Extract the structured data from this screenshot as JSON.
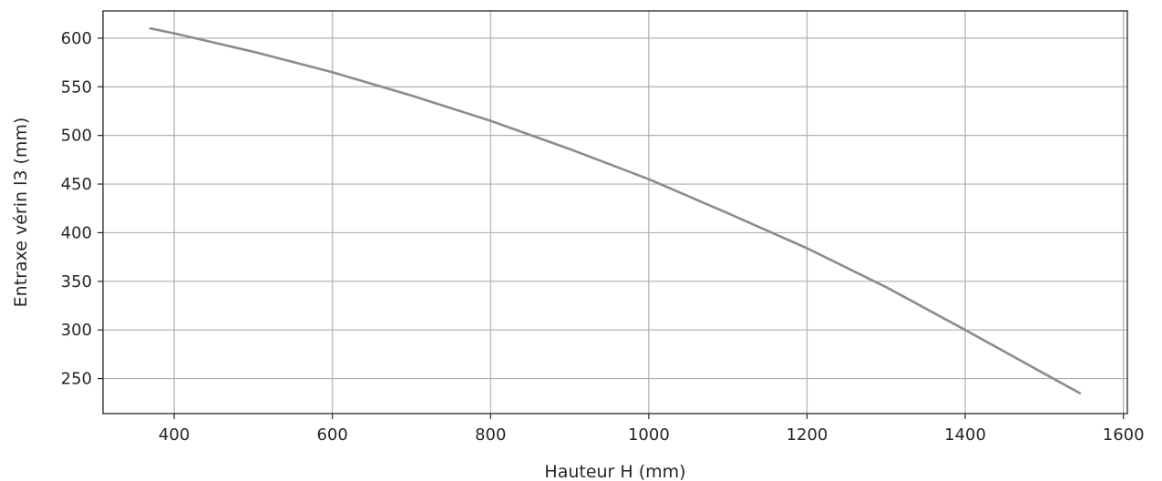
{
  "chart_data": {
    "type": "line",
    "title": "",
    "xlabel": "Hauteur H (mm)",
    "ylabel": "Entraxe vérin l3 (mm)",
    "xlim": [
      310,
      1605
    ],
    "ylim": [
      214,
      628
    ],
    "xticks": [
      400,
      600,
      800,
      1000,
      1200,
      1400,
      1600
    ],
    "yticks": [
      250,
      300,
      350,
      400,
      450,
      500,
      550,
      600
    ],
    "grid": true,
    "legend": "none",
    "series": [
      {
        "color": "#8c8c8c",
        "x": [
          370,
          400,
          500,
          600,
          700,
          800,
          900,
          1000,
          1100,
          1200,
          1300,
          1400,
          1500,
          1545
        ],
        "y": [
          610,
          605,
          586,
          565,
          541,
          515,
          486,
          455,
          420,
          384,
          344,
          300,
          255,
          235
        ]
      }
    ]
  }
}
